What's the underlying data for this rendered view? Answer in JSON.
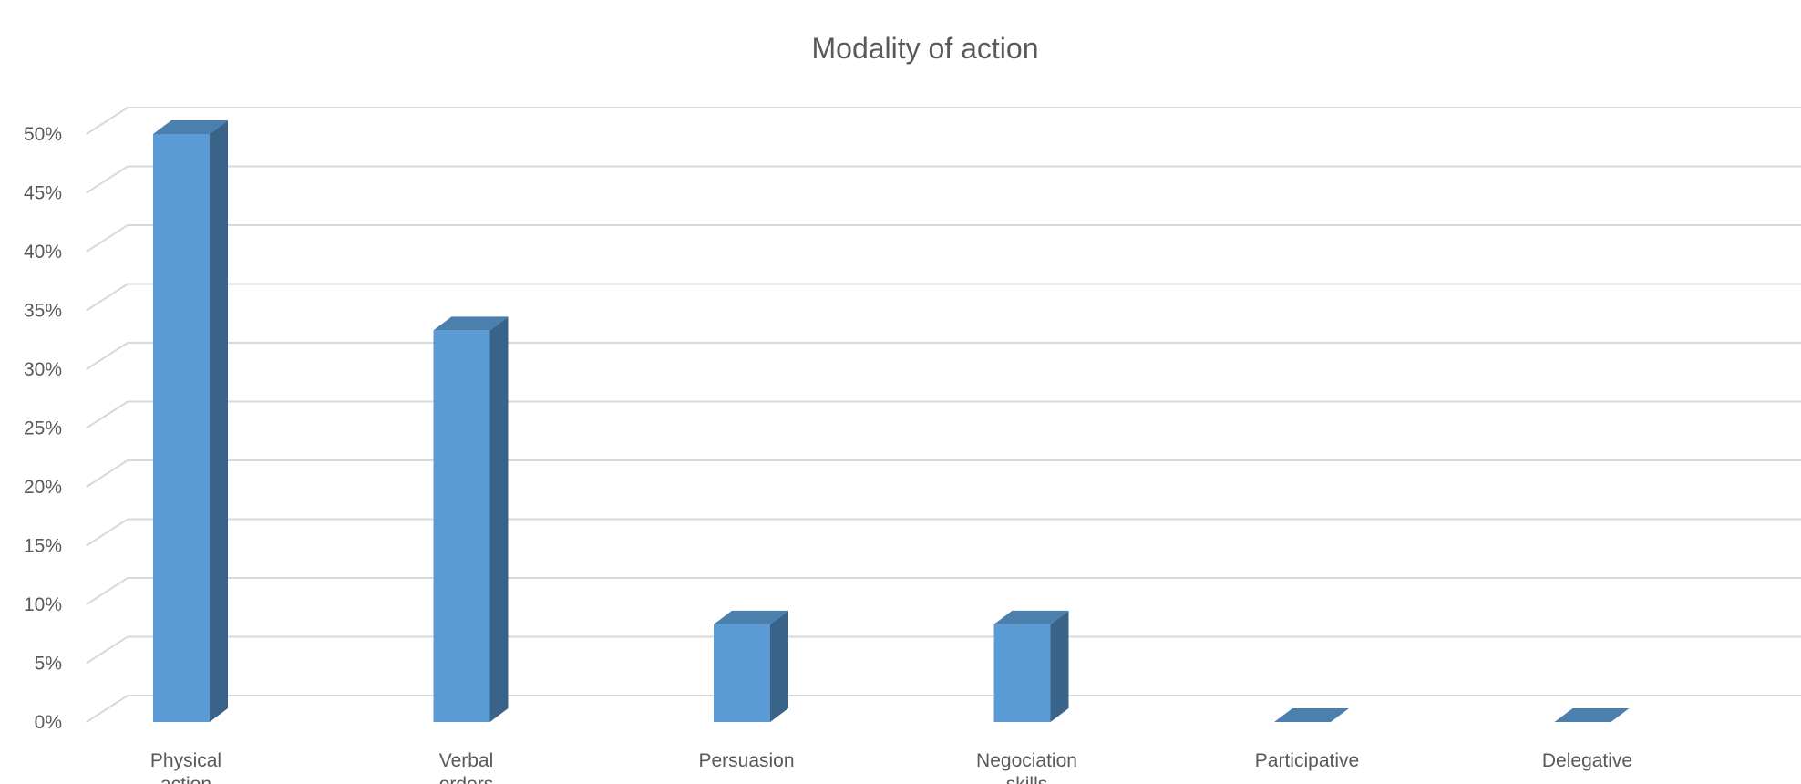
{
  "chart_data": {
    "type": "bar",
    "title": "Modality of action",
    "categories": [
      "Physical action",
      "Verbal orders",
      "Persuasion",
      "Negociation skills",
      "Participative",
      "Delegative"
    ],
    "values": [
      50,
      33.3,
      8.3,
      8.3,
      0,
      0
    ],
    "y_ticks": [
      "0%",
      "5%",
      "10%",
      "15%",
      "20%",
      "25%",
      "30%",
      "35%",
      "40%",
      "45%",
      "50%"
    ],
    "ylim": [
      0,
      50
    ],
    "grid": true,
    "legend": "none",
    "colors": {
      "front": "#5b9bd5",
      "side": "#3a6389",
      "top": "#4a7fae",
      "grid": "#d9d9d9",
      "text": "#595959"
    }
  }
}
